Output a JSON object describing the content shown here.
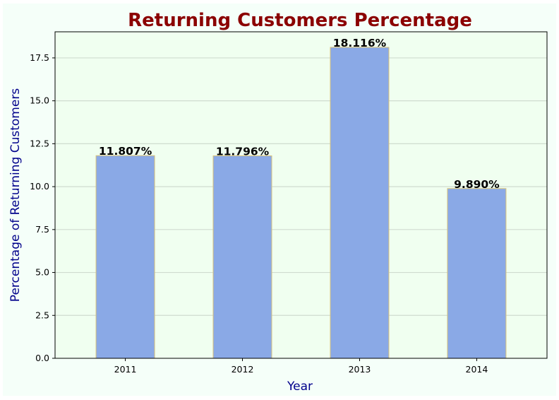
{
  "chart_data": {
    "type": "bar",
    "title": "Returning Customers Percentage",
    "xlabel": "Year",
    "ylabel": "Percentage of Returning Customers",
    "categories": [
      "2011",
      "2012",
      "2013",
      "2014"
    ],
    "values": [
      11.807,
      11.796,
      18.116,
      9.89
    ],
    "data_labels": [
      "11.807%",
      "11.796%",
      "18.116%",
      "9.890%"
    ],
    "ylim": [
      0,
      19.02
    ],
    "yticks": [
      0.0,
      2.5,
      5.0,
      7.5,
      10.0,
      12.5,
      15.0,
      17.5
    ],
    "ytick_labels": [
      "0.0",
      "2.5",
      "5.0",
      "7.5",
      "10.0",
      "12.5",
      "15.0",
      "17.5"
    ],
    "grid": "horizontal",
    "legend": "none"
  },
  "colors": {
    "figure_background": "#f5fff9",
    "plot_background": "#f0fff0",
    "bar_fill": "#8aa9e6",
    "bar_edge": "#d9c27a",
    "title": "#8b0000",
    "axis_labels": "#00008b",
    "grid": "#cfdccf",
    "text": "#000000"
  }
}
